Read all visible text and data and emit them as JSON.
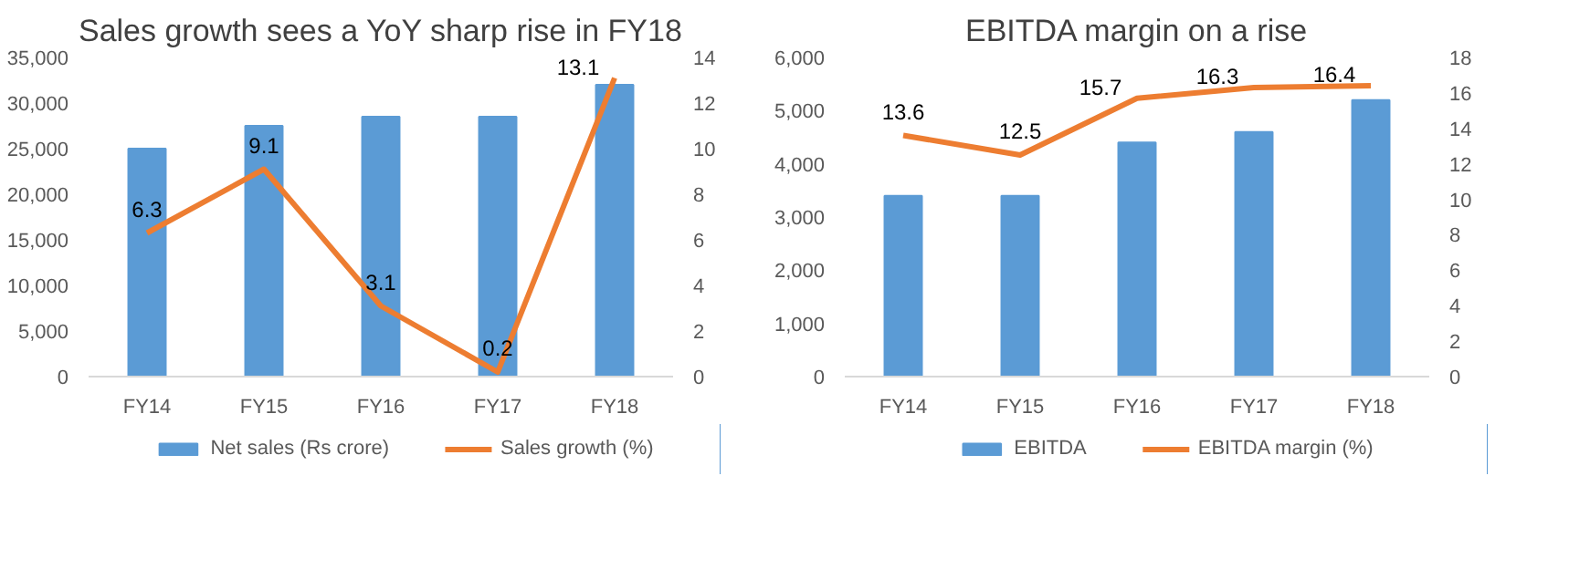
{
  "chart_data": [
    {
      "type": "bar",
      "title": "Sales growth sees a YoY sharp rise in FY18",
      "categories": [
        "FY14",
        "FY15",
        "FY16",
        "FY17",
        "FY18"
      ],
      "series": [
        {
          "name": "Net sales (Rs crore)",
          "color": "#5b9bd5",
          "values": [
            25000,
            27500,
            28500,
            28500,
            32000
          ]
        },
        {
          "name": "Sales growth (%)",
          "type": "line",
          "axis": "y2",
          "color": "#ed7d31",
          "values": [
            6.3,
            9.1,
            3.1,
            0.2,
            13.1
          ],
          "value_labels": [
            "6.3",
            "9.1",
            "3.1",
            "0.2",
            "13.1"
          ]
        }
      ],
      "ylim": [
        0,
        35000
      ],
      "yticks": [
        0,
        {
          "value": 5000,
          "label": "5,000"
        },
        {
          "value": 10000,
          "label": "10,000"
        },
        {
          "value": 15000,
          "label": "15,000"
        },
        {
          "value": 20000,
          "label": "20,000"
        },
        {
          "value": 25000,
          "label": "25,000"
        },
        {
          "value": 30000,
          "label": "30,000"
        },
        {
          "value": 35000,
          "label": "35,000"
        }
      ],
      "y2lim": [
        0,
        14
      ],
      "y2ticks": [
        0,
        2,
        4,
        6,
        8,
        10,
        12,
        14
      ],
      "legend": "bottom",
      "grid": false,
      "line_style": "solid",
      "marker": "none"
    },
    {
      "type": "bar",
      "title": "EBITDA margin on a rise",
      "categories": [
        "FY14",
        "FY15",
        "FY16",
        "FY17",
        "FY18"
      ],
      "series": [
        {
          "name": "EBITDA",
          "color": "#5b9bd5",
          "values": [
            3400,
            3400,
            4400,
            4600,
            5200
          ]
        },
        {
          "name": "EBITDA margin (%)",
          "type": "line",
          "axis": "y2",
          "color": "#ed7d31",
          "values": [
            13.6,
            12.5,
            15.7,
            16.3,
            16.4
          ],
          "value_labels": [
            "13.6",
            "12.5",
            "15.7",
            "16.3",
            "16.4"
          ]
        }
      ],
      "ylim": [
        0,
        6000
      ],
      "yticks": [
        0,
        {
          "value": 1000,
          "label": "1,000"
        },
        {
          "value": 2000,
          "label": "2,000"
        },
        {
          "value": 3000,
          "label": "3,000"
        },
        {
          "value": 4000,
          "label": "4,000"
        },
        {
          "value": 5000,
          "label": "5,000"
        },
        {
          "value": 6000,
          "label": "6,000"
        }
      ],
      "y2lim": [
        0,
        18
      ],
      "y2ticks": [
        0,
        2,
        4,
        6,
        8,
        10,
        12,
        14,
        16,
        18
      ],
      "legend": "bottom",
      "grid": false,
      "line_style": "solid",
      "marker": "none"
    }
  ]
}
